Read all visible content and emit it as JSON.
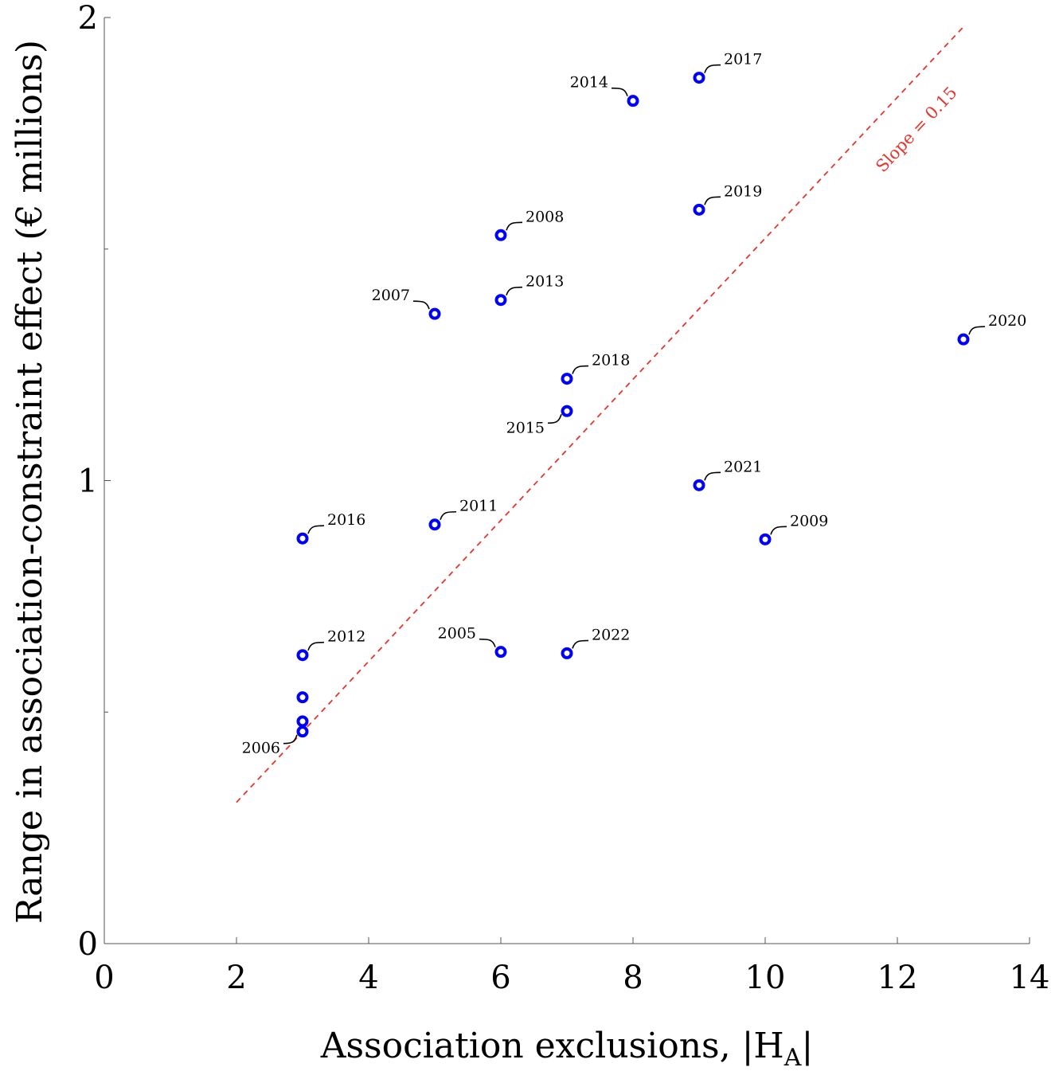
{
  "chart_data": {
    "type": "scatter",
    "xlabel": "Association exclusions, |H",
    "xlabel_subscript": "A",
    "xlabel_tail": "|",
    "ylabel": "Range in association-constraint effect (€ millions)",
    "xlim": [
      0,
      14
    ],
    "ylim": [
      0,
      2
    ],
    "xticks": [
      "0",
      "2",
      "4",
      "6",
      "8",
      "10",
      "12",
      "14"
    ],
    "yticks": [
      "0",
      "1",
      "2"
    ],
    "points": [
      {
        "label": "2017",
        "x": 9,
        "y": 1.87,
        "label_side": "right"
      },
      {
        "label": "2014",
        "x": 8,
        "y": 1.82,
        "label_side": "left"
      },
      {
        "label": "2019",
        "x": 9,
        "y": 1.585,
        "label_side": "right"
      },
      {
        "label": "2008",
        "x": 6,
        "y": 1.53,
        "label_side": "right"
      },
      {
        "label": "2013",
        "x": 6,
        "y": 1.39,
        "label_side": "right"
      },
      {
        "label": "2007",
        "x": 5,
        "y": 1.36,
        "label_side": "left"
      },
      {
        "label": "2020",
        "x": 13,
        "y": 1.305,
        "label_side": "right"
      },
      {
        "label": "2018",
        "x": 7,
        "y": 1.22,
        "label_side": "right"
      },
      {
        "label": "2015",
        "x": 7,
        "y": 1.15,
        "label_side": "left-low"
      },
      {
        "label": "2021",
        "x": 9,
        "y": 0.99,
        "label_side": "right"
      },
      {
        "label": "2011",
        "x": 5,
        "y": 0.905,
        "label_side": "right"
      },
      {
        "label": "2016",
        "x": 3,
        "y": 0.875,
        "label_side": "right"
      },
      {
        "label": "2009",
        "x": 10,
        "y": 0.873,
        "label_side": "right"
      },
      {
        "label": "2012",
        "x": 3,
        "y": 0.623,
        "label_side": "right"
      },
      {
        "label": "2005",
        "x": 6,
        "y": 0.63,
        "label_side": "left"
      },
      {
        "label": "2022",
        "x": 7,
        "y": 0.627,
        "label_side": "right"
      },
      {
        "label": "",
        "x": 3,
        "y": 0.532,
        "label_side": "none"
      },
      {
        "label": "",
        "x": 3,
        "y": 0.48,
        "label_side": "none"
      },
      {
        "label": "2006",
        "x": 3,
        "y": 0.458,
        "label_side": "left-low"
      }
    ],
    "fit_line": {
      "x": [
        2,
        13
      ],
      "y": [
        0.305,
        1.98
      ],
      "label": "Slope = 0.15"
    },
    "colors": {
      "marker": "#0000ff",
      "fit": "#e8352b"
    }
  }
}
